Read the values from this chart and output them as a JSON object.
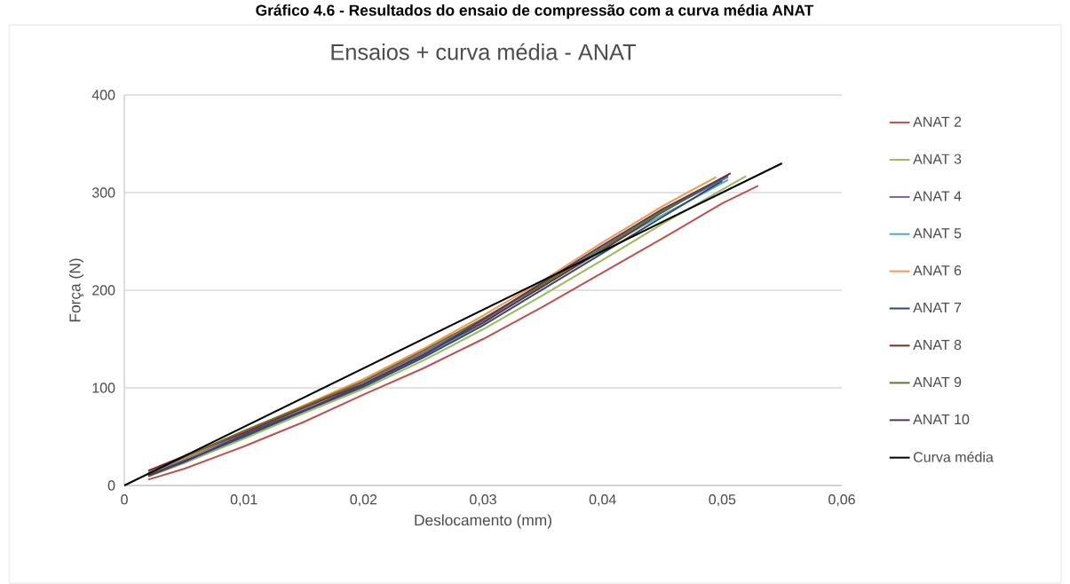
{
  "chart_data": {
    "type": "line",
    "title": "Ensaios + curva média - ANAT",
    "annotations": [
      "Gráfico 4.6 - Resultados do ensaio de compressão com a curva média ANAT"
    ],
    "xlabel": "Deslocamento (mm)",
    "ylabel": "Força (N)",
    "xlim": [
      0,
      0.06
    ],
    "xticks": [
      {
        "value": 0,
        "label": "0"
      },
      {
        "value": 0.01,
        "label": "0,01"
      },
      {
        "value": 0.02,
        "label": "0,02"
      },
      {
        "value": 0.03,
        "label": "0,03"
      },
      {
        "value": 0.04,
        "label": "0,04"
      },
      {
        "value": 0.05,
        "label": "0,05"
      },
      {
        "value": 0.06,
        "label": "0,06"
      }
    ],
    "ylim": [
      0,
      400
    ],
    "yticks": [
      0,
      100,
      200,
      300,
      400
    ],
    "grid": "y",
    "legend": "right",
    "series": [
      {
        "name": "ANAT 2",
        "color": "#c0504d",
        "x": [
          0.002,
          0.005,
          0.01,
          0.015,
          0.02,
          0.025,
          0.03,
          0.035,
          0.04,
          0.045,
          0.05,
          0.053
        ],
        "values": [
          6,
          17,
          40,
          65,
          93,
          120,
          150,
          183,
          218,
          253,
          289,
          307
        ]
      },
      {
        "name": "ANAT 3",
        "color": "#9bbb59",
        "x": [
          0.002,
          0.005,
          0.01,
          0.015,
          0.02,
          0.025,
          0.03,
          0.035,
          0.04,
          0.045,
          0.05,
          0.052
        ],
        "values": [
          9,
          23,
          48,
          74,
          99,
          128,
          160,
          195,
          231,
          268,
          303,
          317
        ]
      },
      {
        "name": "ANAT 4",
        "color": "#8064a2",
        "x": [
          0.002,
          0.005,
          0.01,
          0.015,
          0.02,
          0.025,
          0.03,
          0.035,
          0.04,
          0.045,
          0.0505
        ],
        "values": [
          11,
          27,
          53,
          79,
          106,
          136,
          169,
          205,
          244,
          281,
          316
        ]
      },
      {
        "name": "ANAT 5",
        "color": "#4bacc6",
        "x": [
          0.002,
          0.005,
          0.01,
          0.015,
          0.02,
          0.025,
          0.03,
          0.035,
          0.04,
          0.045,
          0.0505
        ],
        "values": [
          12,
          24,
          50,
          76,
          102,
          132,
          166,
          207,
          243,
          277,
          313
        ]
      },
      {
        "name": "ANAT 6",
        "color": "#f79646",
        "x": [
          0.002,
          0.005,
          0.01,
          0.015,
          0.02,
          0.025,
          0.03,
          0.035,
          0.04,
          0.045,
          0.0495
        ],
        "values": [
          13,
          28,
          55,
          82,
          109,
          140,
          174,
          210,
          249,
          286,
          316
        ]
      },
      {
        "name": "ANAT 7",
        "color": "#2c4d75",
        "x": [
          0.002,
          0.005,
          0.01,
          0.015,
          0.02,
          0.025,
          0.03,
          0.035,
          0.04,
          0.045,
          0.05
        ],
        "values": [
          10,
          25,
          50,
          76,
          101,
          131,
          164,
          201,
          238,
          275,
          312
        ]
      },
      {
        "name": "ANAT 8",
        "color": "#772c2a",
        "x": [
          0.002,
          0.005,
          0.01,
          0.015,
          0.02,
          0.025,
          0.03,
          0.035,
          0.04,
          0.045,
          0.0507
        ],
        "values": [
          15,
          30,
          54,
          80,
          104,
          134,
          167,
          204,
          241,
          280,
          320
        ]
      },
      {
        "name": "ANAT 9",
        "color": "#5f7530",
        "x": [
          0.002,
          0.005,
          0.01,
          0.015,
          0.02,
          0.025,
          0.03,
          0.035,
          0.04,
          0.045,
          0.0505
        ],
        "values": [
          12,
          29,
          56,
          81,
          107,
          138,
          171,
          206,
          243,
          281,
          318
        ]
      },
      {
        "name": "ANAT 10",
        "color": "#4d3b62",
        "x": [
          0.002,
          0.005,
          0.01,
          0.015,
          0.02,
          0.025,
          0.03,
          0.035,
          0.04,
          0.045,
          0.0505
        ],
        "values": [
          10,
          24,
          52,
          77,
          103,
          133,
          170,
          208,
          246,
          283,
          318
        ]
      },
      {
        "name": "Curva média",
        "color": "#000000",
        "x": [
          0,
          0.055
        ],
        "values": [
          0,
          330
        ]
      }
    ]
  }
}
